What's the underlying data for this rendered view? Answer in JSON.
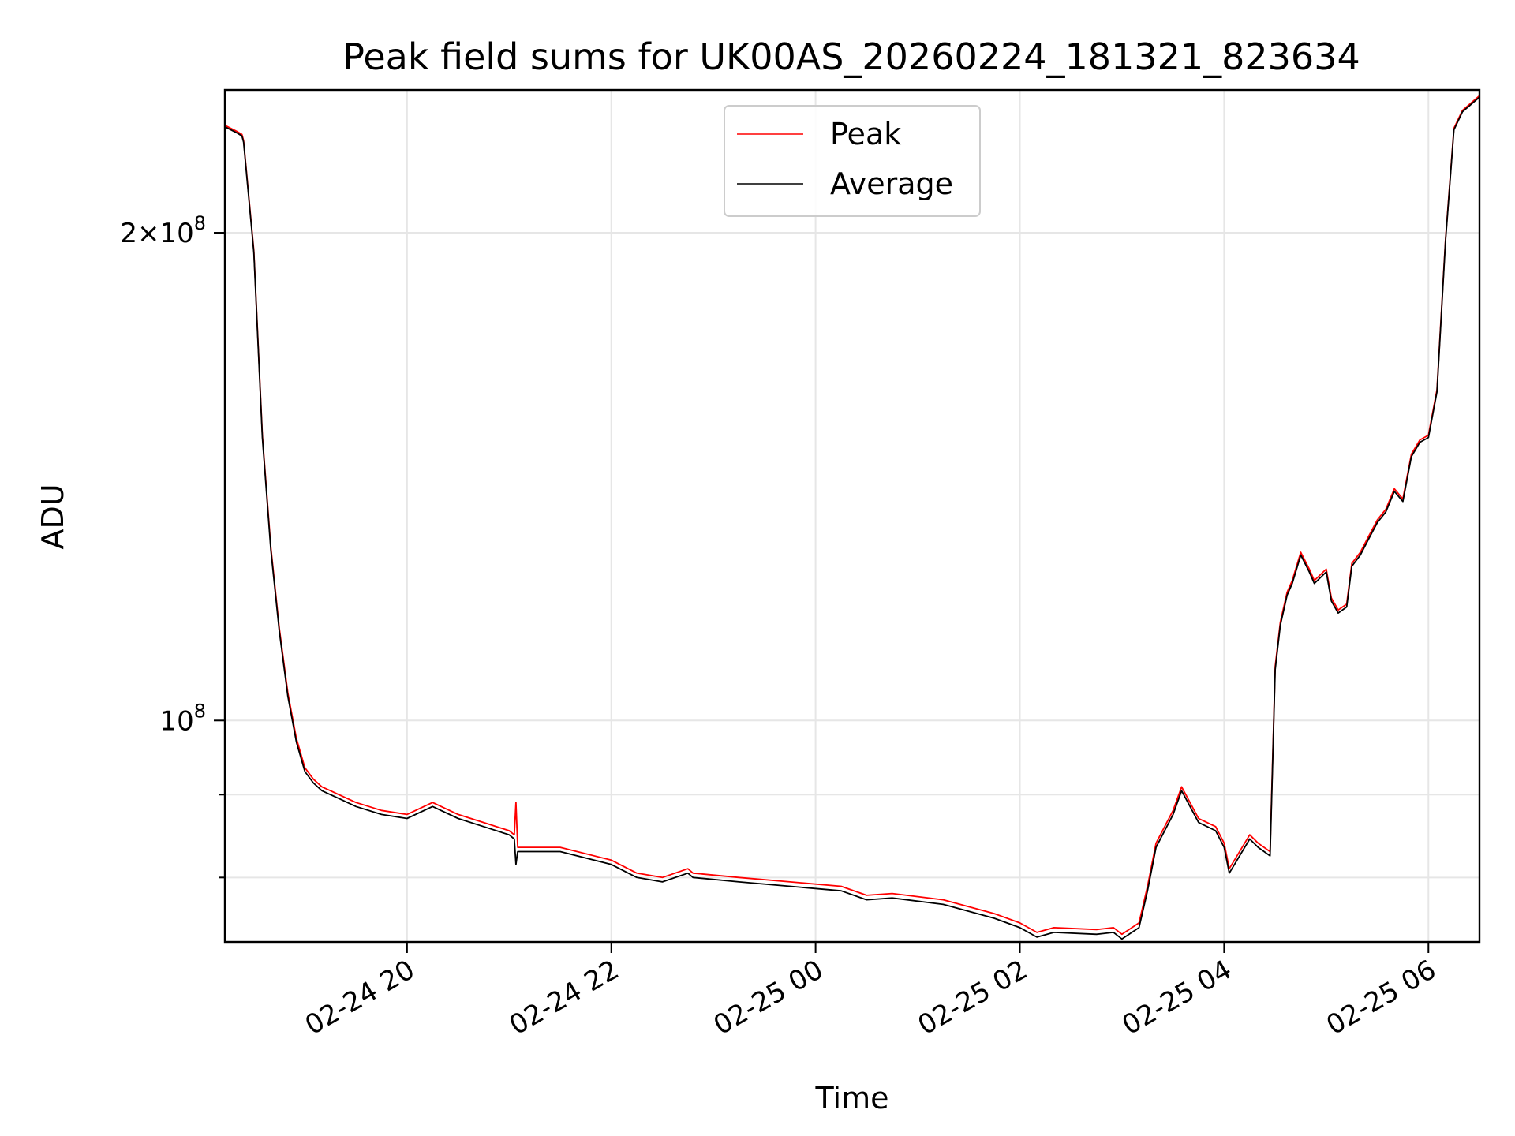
{
  "chart_data": {
    "type": "line",
    "title": "Peak field sums for UK00AS_20260224_181321_823634",
    "xlabel": "Time",
    "ylabel": "ADU",
    "x_unit": "datetime",
    "y_scale": "log",
    "xlim": [
      "2026-02-24 18:13",
      "2026-02-25 06:30"
    ],
    "ylim": [
      73000000,
      245000000
    ],
    "x_ticks": [
      {
        "value": "2026-02-24 20:00",
        "label": "02-24 20"
      },
      {
        "value": "2026-02-24 22:00",
        "label": "02-24 22"
      },
      {
        "value": "2026-02-25 00:00",
        "label": "02-25 00"
      },
      {
        "value": "2026-02-25 02:00",
        "label": "02-25 02"
      },
      {
        "value": "2026-02-25 04:00",
        "label": "02-25 04"
      },
      {
        "value": "2026-02-25 06:00",
        "label": "02-25 06"
      }
    ],
    "y_major_ticks": [
      {
        "value": 100000000,
        "base": "10",
        "exp": "8",
        "mant": ""
      },
      {
        "value": 200000000,
        "base": "10",
        "exp": "8",
        "mant": "2"
      }
    ],
    "y_minor_ticks": [
      80000000,
      90000000
    ],
    "grid": true,
    "legend_position": "upper-center",
    "series": [
      {
        "name": "Peak",
        "color": "#ff0000",
        "x": [
          "2026-02-24 18:13",
          "2026-02-24 18:20",
          "2026-02-24 18:23",
          "2026-02-24 18:24",
          "2026-02-24 18:30",
          "2026-02-24 18:35",
          "2026-02-24 18:40",
          "2026-02-24 18:45",
          "2026-02-24 18:50",
          "2026-02-24 18:55",
          "2026-02-24 19:00",
          "2026-02-24 19:05",
          "2026-02-24 19:10",
          "2026-02-24 19:15",
          "2026-02-24 19:20",
          "2026-02-24 19:30",
          "2026-02-24 19:45",
          "2026-02-24 20:00",
          "2026-02-24 20:15",
          "2026-02-24 20:30",
          "2026-02-24 20:45",
          "2026-02-24 21:00",
          "2026-02-24 21:03",
          "2026-02-24 21:04",
          "2026-02-24 21:05",
          "2026-02-24 21:30",
          "2026-02-24 22:00",
          "2026-02-24 22:15",
          "2026-02-24 22:30",
          "2026-02-24 22:45",
          "2026-02-24 22:48",
          "2026-02-24 23:15",
          "2026-02-24 23:45",
          "2026-02-25 00:15",
          "2026-02-25 00:30",
          "2026-02-25 00:45",
          "2026-02-25 01:15",
          "2026-02-25 01:45",
          "2026-02-25 02:00",
          "2026-02-25 02:10",
          "2026-02-25 02:20",
          "2026-02-25 02:45",
          "2026-02-25 02:55",
          "2026-02-25 03:00",
          "2026-02-25 03:10",
          "2026-02-25 03:15",
          "2026-02-25 03:20",
          "2026-02-25 03:30",
          "2026-02-25 03:35",
          "2026-02-25 03:45",
          "2026-02-25 03:55",
          "2026-02-25 04:00",
          "2026-02-25 04:03",
          "2026-02-25 04:15",
          "2026-02-25 04:20",
          "2026-02-25 04:27",
          "2026-02-25 04:30",
          "2026-02-25 04:33",
          "2026-02-25 04:37",
          "2026-02-25 04:40",
          "2026-02-25 04:45",
          "2026-02-25 04:50",
          "2026-02-25 04:53",
          "2026-02-25 05:00",
          "2026-02-25 05:03",
          "2026-02-25 05:07",
          "2026-02-25 05:12",
          "2026-02-25 05:15",
          "2026-02-25 05:20",
          "2026-02-25 05:25",
          "2026-02-25 05:30",
          "2026-02-25 05:35",
          "2026-02-25 05:40",
          "2026-02-25 05:45",
          "2026-02-25 05:50",
          "2026-02-25 05:55",
          "2026-02-25 06:00",
          "2026-02-25 06:05",
          "2026-02-25 06:10",
          "2026-02-25 06:15",
          "2026-02-25 06:20",
          "2026-02-25 06:30"
        ],
        "values": [
          233000000,
          231000000,
          230000000,
          228000000,
          195000000,
          150000000,
          128000000,
          114000000,
          104000000,
          97500000,
          93500000,
          92000000,
          91000000,
          90500000,
          90000000,
          89000000,
          88000000,
          87500000,
          89000000,
          87500000,
          86500000,
          85500000,
          85000000,
          89000000,
          83500000,
          83500000,
          82000000,
          80500000,
          80000000,
          81000000,
          80500000,
          80000000,
          79500000,
          79000000,
          78000000,
          78200000,
          77500000,
          76000000,
          75000000,
          74000000,
          74500000,
          74300000,
          74500000,
          73800000,
          75000000,
          79000000,
          84000000,
          88000000,
          91000000,
          87000000,
          86000000,
          84000000,
          81000000,
          85000000,
          84000000,
          83000000,
          108000000,
          115000000,
          120000000,
          122000000,
          127000000,
          124000000,
          122000000,
          124000000,
          119000000,
          117000000,
          118000000,
          125000000,
          127000000,
          130000000,
          133000000,
          135000000,
          139000000,
          137000000,
          146000000,
          149000000,
          150000000,
          160000000,
          198000000,
          232000000,
          238000000,
          243000000
        ]
      },
      {
        "name": "Average",
        "color": "#000000",
        "x": [
          "2026-02-24 18:13",
          "2026-02-24 18:20",
          "2026-02-24 18:23",
          "2026-02-24 18:24",
          "2026-02-24 18:30",
          "2026-02-24 18:35",
          "2026-02-24 18:40",
          "2026-02-24 18:45",
          "2026-02-24 18:50",
          "2026-02-24 18:55",
          "2026-02-24 19:00",
          "2026-02-24 19:05",
          "2026-02-24 19:10",
          "2026-02-24 19:15",
          "2026-02-24 19:20",
          "2026-02-24 19:30",
          "2026-02-24 19:45",
          "2026-02-24 20:00",
          "2026-02-24 20:15",
          "2026-02-24 20:30",
          "2026-02-24 20:45",
          "2026-02-24 21:00",
          "2026-02-24 21:03",
          "2026-02-24 21:04",
          "2026-02-24 21:05",
          "2026-02-24 21:30",
          "2026-02-24 22:00",
          "2026-02-24 22:15",
          "2026-02-24 22:30",
          "2026-02-24 22:45",
          "2026-02-24 22:48",
          "2026-02-24 23:15",
          "2026-02-24 23:45",
          "2026-02-25 00:15",
          "2026-02-25 00:30",
          "2026-02-25 00:45",
          "2026-02-25 01:15",
          "2026-02-25 01:45",
          "2026-02-25 02:00",
          "2026-02-25 02:10",
          "2026-02-25 02:20",
          "2026-02-25 02:45",
          "2026-02-25 02:55",
          "2026-02-25 03:00",
          "2026-02-25 03:10",
          "2026-02-25 03:15",
          "2026-02-25 03:20",
          "2026-02-25 03:30",
          "2026-02-25 03:35",
          "2026-02-25 03:45",
          "2026-02-25 03:55",
          "2026-02-25 04:00",
          "2026-02-25 04:03",
          "2026-02-25 04:15",
          "2026-02-25 04:20",
          "2026-02-25 04:27",
          "2026-02-25 04:30",
          "2026-02-25 04:33",
          "2026-02-25 04:37",
          "2026-02-25 04:40",
          "2026-02-25 04:45",
          "2026-02-25 04:50",
          "2026-02-25 04:53",
          "2026-02-25 05:00",
          "2026-02-25 05:03",
          "2026-02-25 05:07",
          "2026-02-25 05:12",
          "2026-02-25 05:15",
          "2026-02-25 05:20",
          "2026-02-25 05:25",
          "2026-02-25 05:30",
          "2026-02-25 05:35",
          "2026-02-25 05:40",
          "2026-02-25 05:45",
          "2026-02-25 05:50",
          "2026-02-25 05:55",
          "2026-02-25 06:00",
          "2026-02-25 06:05",
          "2026-02-25 06:10",
          "2026-02-25 06:15",
          "2026-02-25 06:20",
          "2026-02-25 06:30"
        ],
        "values": [
          232500000,
          230500000,
          229500000,
          227500000,
          194500000,
          149500000,
          127500000,
          113500000,
          103500000,
          97000000,
          93000000,
          91500000,
          90500000,
          90000000,
          89500000,
          88500000,
          87500000,
          87000000,
          88500000,
          87000000,
          86000000,
          85000000,
          84500000,
          81500000,
          83000000,
          83000000,
          81500000,
          80000000,
          79500000,
          80500000,
          80000000,
          79500000,
          79000000,
          78500000,
          77500000,
          77700000,
          77000000,
          75500000,
          74500000,
          73500000,
          74000000,
          73800000,
          74000000,
          73300000,
          74500000,
          78500000,
          83500000,
          87500000,
          90500000,
          86500000,
          85500000,
          83500000,
          80500000,
          84500000,
          83500000,
          82500000,
          107500000,
          114500000,
          119500000,
          121500000,
          126500000,
          123500000,
          121500000,
          123500000,
          118500000,
          116500000,
          117500000,
          124500000,
          126500000,
          129500000,
          132500000,
          134500000,
          138500000,
          136500000,
          145500000,
          148500000,
          149500000,
          159500000,
          197500000,
          231500000,
          237500000,
          242500000
        ]
      }
    ]
  }
}
